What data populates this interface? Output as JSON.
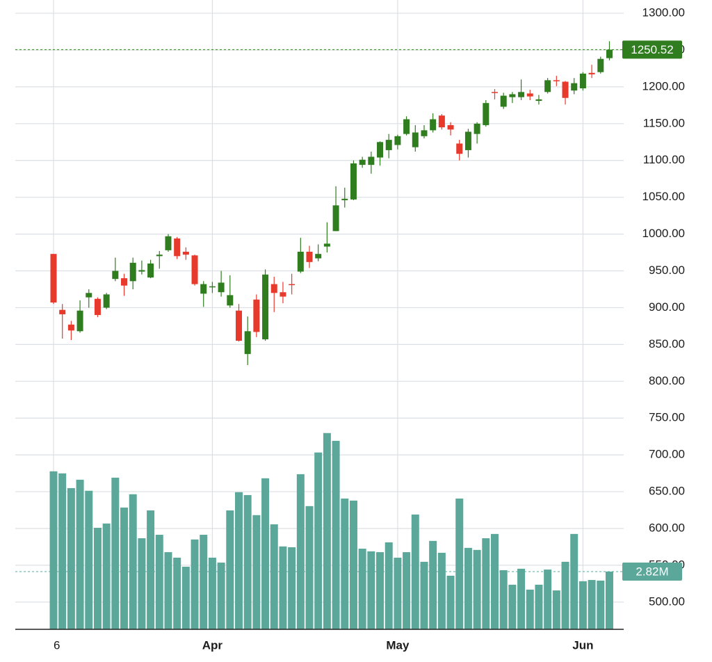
{
  "chart_data": {
    "type": "candlestick",
    "categories": [
      "6",
      null,
      null,
      null,
      null,
      null,
      null,
      null,
      null,
      null,
      null,
      null,
      null,
      null,
      null,
      null,
      null,
      null,
      "Apr",
      null,
      null,
      null,
      null,
      null,
      null,
      null,
      null,
      null,
      null,
      null,
      null,
      null,
      null,
      null,
      null,
      null,
      null,
      null,
      null,
      "May",
      null,
      null,
      null,
      null,
      null,
      null,
      null,
      null,
      null,
      null,
      null,
      null,
      null,
      null,
      null,
      null,
      null,
      null,
      null,
      null,
      "Jun",
      null,
      null,
      null
    ],
    "open": [
      973,
      897,
      877,
      868,
      914,
      912,
      900,
      939,
      940,
      936,
      949,
      941,
      970,
      978,
      994,
      976,
      971,
      919,
      928,
      921,
      903,
      896,
      837,
      911,
      857,
      932,
      921,
      932,
      949,
      976,
      967,
      983,
      1004,
      1046,
      1047,
      1094,
      1094,
      1104,
      1114,
      1121,
      1136,
      1118,
      1133,
      1141,
      1161,
      1148,
      1123,
      1114,
      1136,
      1148,
      1193,
      1173,
      1186,
      1186,
      1191,
      1181,
      1193,
      1209,
      1207,
      1195,
      1198,
      1219,
      1220,
      1239
    ],
    "high": [
      973,
      905,
      882,
      910,
      925,
      914,
      920,
      968,
      946,
      968,
      964,
      965,
      977,
      1000,
      996,
      982,
      972,
      936,
      935,
      950,
      944,
      905,
      888,
      918,
      952,
      942,
      935,
      946,
      995,
      984,
      986,
      1016,
      1065,
      1063,
      1100,
      1105,
      1112,
      1126,
      1136,
      1135,
      1160,
      1148,
      1148,
      1164,
      1163,
      1152,
      1128,
      1143,
      1152,
      1182,
      1197,
      1192,
      1193,
      1210,
      1196,
      1189,
      1212,
      1215,
      1208,
      1212,
      1220,
      1230,
      1241,
      1262
    ],
    "low": [
      905,
      858,
      856,
      866,
      900,
      887,
      898,
      936,
      916,
      925,
      945,
      940,
      953,
      976,
      966,
      965,
      930,
      901,
      920,
      915,
      900,
      854,
      822,
      860,
      855,
      894,
      906,
      918,
      947,
      954,
      963,
      975,
      1004,
      1036,
      1046,
      1090,
      1082,
      1093,
      1103,
      1115,
      1134,
      1112,
      1130,
      1138,
      1142,
      1134,
      1100,
      1104,
      1123,
      1146,
      1183,
      1170,
      1178,
      1182,
      1182,
      1176,
      1191,
      1201,
      1176,
      1190,
      1195,
      1212,
      1218,
      1236
    ],
    "close": [
      907,
      891,
      869,
      896,
      920,
      890,
      918,
      950,
      930,
      961,
      951,
      960,
      972,
      997,
      970,
      972,
      932,
      932,
      929,
      934,
      917,
      855,
      868,
      867,
      945,
      920,
      915,
      931,
      976,
      962,
      973,
      987,
      1039,
      1048,
      1096,
      1101,
      1105,
      1125,
      1128,
      1133,
      1156,
      1138,
      1141,
      1156,
      1145,
      1142,
      1109,
      1139,
      1150,
      1178,
      1192,
      1188,
      1190,
      1193,
      1187,
      1183,
      1209,
      1208,
      1185,
      1205,
      1218,
      1217,
      1238,
      1250.52
    ],
    "volume": [
      7.72,
      7.62,
      6.9,
      7.31,
      6.77,
      4.96,
      5.17,
      7.41,
      5.95,
      6.6,
      4.45,
      5.81,
      4.62,
      3.77,
      3.5,
      3.06,
      4.39,
      4.62,
      3.5,
      3.26,
      5.81,
      6.7,
      6.56,
      5.58,
      7.38,
      5.13,
      4.05,
      4.01,
      7.58,
      6.02,
      8.64,
      9.59,
      9.21,
      6.39,
      6.29,
      3.94,
      3.81,
      3.77,
      4.25,
      3.5,
      3.77,
      5.61,
      3.3,
      4.32,
      3.74,
      2.62,
      6.39,
      3.98,
      3.88,
      4.45,
      4.66,
      2.89,
      2.18,
      2.96,
      1.94,
      2.18,
      2.92,
      1.9,
      3.3,
      4.66,
      2.35,
      2.41,
      2.38,
      2.82
    ],
    "up_color": "#2f7d1f",
    "down_color": "#e8392d",
    "volume_color": "#5ba89b",
    "ylim": [
      463,
      1318
    ],
    "yticks": [
      {
        "value": 500,
        "label": "500.00"
      },
      {
        "value": 550,
        "label": "550.00"
      },
      {
        "value": 600,
        "label": "600.00"
      },
      {
        "value": 650,
        "label": "650.00"
      },
      {
        "value": 700,
        "label": "700.00"
      },
      {
        "value": 750,
        "label": "750.00"
      },
      {
        "value": 800,
        "label": "800.00"
      },
      {
        "value": 850,
        "label": "850.00"
      },
      {
        "value": 900,
        "label": "900.00"
      },
      {
        "value": 950,
        "label": "950.00"
      },
      {
        "value": 1000,
        "label": "1000.00"
      },
      {
        "value": 1050,
        "label": "1050.00"
      },
      {
        "value": 1100,
        "label": "1100.00"
      },
      {
        "value": 1150,
        "label": "1150.00"
      },
      {
        "value": 1200,
        "label": "1200.00"
      },
      {
        "value": 1250,
        "label": "1250.00"
      },
      {
        "value": 1300,
        "label": "1300.00"
      }
    ],
    "volume_lim": [
      0,
      30.75
    ],
    "last_price": 1250.52,
    "last_volume": {
      "value": 2.82,
      "label": "2.82M"
    },
    "grid": true
  }
}
